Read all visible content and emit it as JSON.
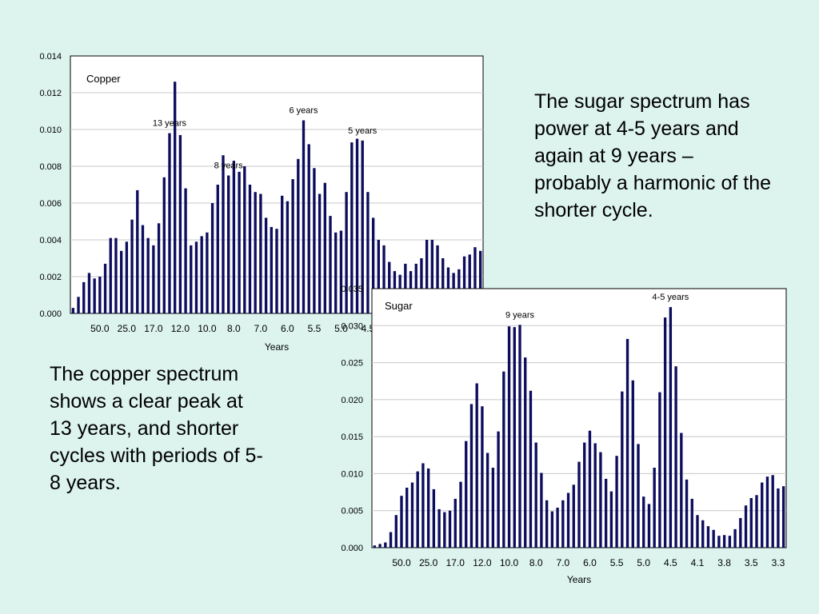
{
  "texts": {
    "sugar": "The sugar spectrum has power at 4-5 years and again at 9 years – probably a harmonic of the shorter cycle.",
    "copper": "The copper spectrum shows a clear peak at 13 years, and shorter cycles with periods of 5-8 years."
  },
  "colors": {
    "background": "#dcf3ee",
    "bar": "#0d0d5e",
    "plot_area": "#ffffff",
    "gridline": "#c8c8c8"
  },
  "chart_data": [
    {
      "type": "bar",
      "name": "copper",
      "legend_label": "Copper",
      "xlabel": "Years",
      "ylim": [
        0,
        0.014
      ],
      "yticks": [
        "0.000",
        "0.002",
        "0.004",
        "0.006",
        "0.008",
        "0.010",
        "0.012",
        "0.014"
      ],
      "xtick_labels": [
        "50.0",
        "25.0",
        "17.0",
        "12.0",
        "10.0",
        "8.0",
        "7.0",
        "6.0",
        "5.5",
        "5.0",
        "4.5"
      ],
      "annotations": [
        {
          "text": "13 years",
          "bar_index": 18
        },
        {
          "text": "8 years",
          "bar_index": 29
        },
        {
          "text": "6 years",
          "bar_index": 43
        },
        {
          "text": "5 years",
          "bar_index": 54
        }
      ],
      "values": [
        0.0003,
        0.0009,
        0.0017,
        0.0022,
        0.0019,
        0.002,
        0.0027,
        0.0041,
        0.0041,
        0.0034,
        0.0039,
        0.0051,
        0.0067,
        0.0048,
        0.0041,
        0.0037,
        0.0049,
        0.0074,
        0.0098,
        0.0126,
        0.0097,
        0.0068,
        0.0037,
        0.0039,
        0.0042,
        0.0044,
        0.006,
        0.007,
        0.0086,
        0.0075,
        0.0083,
        0.0077,
        0.008,
        0.007,
        0.0066,
        0.0065,
        0.0052,
        0.0047,
        0.0046,
        0.0064,
        0.0061,
        0.0073,
        0.0084,
        0.0105,
        0.0092,
        0.0079,
        0.0065,
        0.0071,
        0.0053,
        0.0044,
        0.0045,
        0.0066,
        0.0093,
        0.0095,
        0.0094,
        0.0066,
        0.0052,
        0.004,
        0.0037,
        0.0028,
        0.0023,
        0.0021,
        0.0027,
        0.0023,
        0.0027,
        0.003,
        0.004,
        0.004,
        0.0037,
        0.003,
        0.0025,
        0.0022,
        0.0024,
        0.0031,
        0.0032,
        0.0036,
        0.0034
      ]
    },
    {
      "type": "bar",
      "name": "sugar",
      "legend_label": "Sugar",
      "xlabel": "Years",
      "ylim": [
        0,
        0.035
      ],
      "yticks": [
        "0.000",
        "0.005",
        "0.010",
        "0.015",
        "0.020",
        "0.025",
        "0.030",
        "0.035"
      ],
      "xtick_labels": [
        "50.0",
        "25.0",
        "17.0",
        "12.0",
        "10.0",
        "8.0",
        "7.0",
        "6.0",
        "5.5",
        "5.0",
        "4.5",
        "4.1",
        "3.8",
        "3.5",
        "3.3"
      ],
      "annotations": [
        {
          "text": "9 years",
          "bar_index": 27
        },
        {
          "text": "4-5 years",
          "bar_index": 55
        }
      ],
      "values": [
        0.0003,
        0.0005,
        0.0007,
        0.0021,
        0.0044,
        0.007,
        0.0081,
        0.0088,
        0.0103,
        0.0114,
        0.0107,
        0.0079,
        0.0052,
        0.0048,
        0.005,
        0.0066,
        0.0089,
        0.0144,
        0.0194,
        0.0222,
        0.0191,
        0.0128,
        0.0108,
        0.0157,
        0.0238,
        0.0299,
        0.0298,
        0.0301,
        0.0257,
        0.0212,
        0.0142,
        0.0101,
        0.0064,
        0.0049,
        0.0054,
        0.0064,
        0.0074,
        0.0085,
        0.0116,
        0.0142,
        0.0158,
        0.0141,
        0.0129,
        0.0093,
        0.0076,
        0.0124,
        0.0211,
        0.0282,
        0.0226,
        0.014,
        0.0069,
        0.0059,
        0.0108,
        0.021,
        0.0311,
        0.0325,
        0.0245,
        0.0155,
        0.0092,
        0.0066,
        0.0044,
        0.0037,
        0.0029,
        0.0024,
        0.0016,
        0.0017,
        0.0016,
        0.0025,
        0.004,
        0.0057,
        0.0067,
        0.0071,
        0.0088,
        0.0096,
        0.0098,
        0.008,
        0.0083
      ]
    }
  ]
}
